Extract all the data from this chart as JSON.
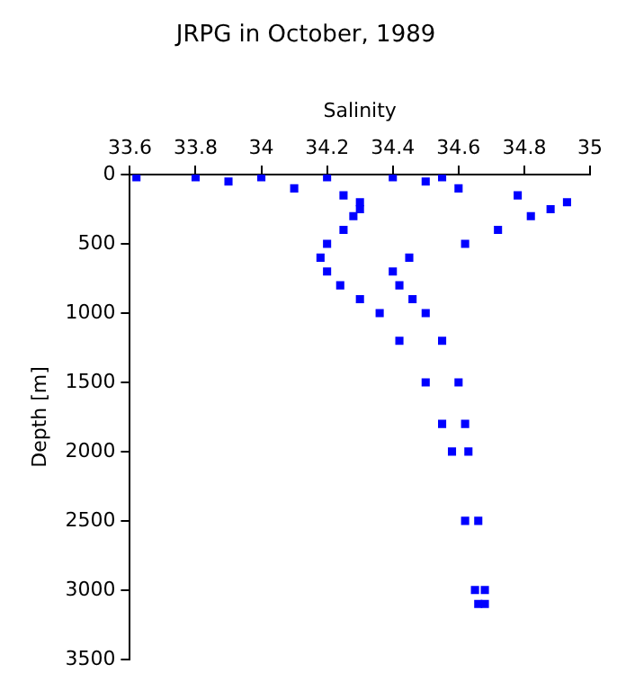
{
  "chart_data": {
    "type": "scatter",
    "title": "JRPG in October, 1989",
    "xlabel": "Salinity",
    "ylabel": "Depth [m]",
    "x": [
      33.62,
      33.8,
      34.0,
      34.2,
      34.4,
      34.55,
      33.9,
      34.5,
      34.1,
      34.6,
      34.25,
      34.78,
      34.3,
      34.93,
      34.3,
      34.88,
      34.28,
      34.82,
      34.25,
      34.72,
      34.2,
      34.62,
      34.18,
      34.45,
      34.2,
      34.4,
      34.24,
      34.42,
      34.3,
      34.46,
      34.36,
      34.5,
      34.42,
      34.55,
      34.5,
      34.6,
      34.55,
      34.62,
      34.58,
      34.63,
      34.62,
      34.66,
      34.65,
      34.68,
      34.66,
      34.68
    ],
    "series": [
      {
        "color": "#0000ff",
        "values": [
          20,
          20,
          20,
          20,
          20,
          20,
          50,
          50,
          100,
          100,
          150,
          150,
          200,
          200,
          250,
          250,
          300,
          300,
          400,
          400,
          500,
          500,
          600,
          600,
          700,
          700,
          800,
          800,
          900,
          900,
          1000,
          1000,
          1200,
          1200,
          1500,
          1500,
          1800,
          1800,
          2000,
          2000,
          2500,
          2500,
          3000,
          3000,
          3100,
          3100
        ]
      }
    ],
    "xlim": [
      33.6,
      35
    ],
    "xticks": [
      33.6,
      33.8,
      34,
      34.2,
      34.4,
      34.6,
      34.8,
      35
    ],
    "ylim": [
      3500,
      0
    ],
    "yticks": [
      0,
      500,
      1000,
      1500,
      2000,
      2500,
      3000,
      3500
    ],
    "grid": false,
    "legend": false,
    "marker": "square"
  }
}
